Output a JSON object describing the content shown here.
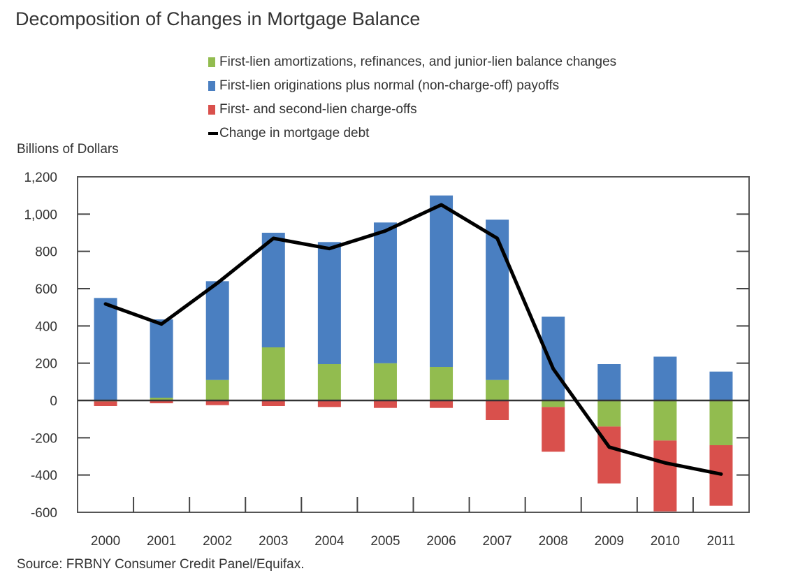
{
  "chart_data": {
    "type": "bar",
    "stacked": true,
    "title": "Decomposition of Changes in Mortgage Balance",
    "ylabel": "Billions of Dollars",
    "xlabel": "",
    "source": "Source: FRBNY Consumer Credit Panel/Equifax.",
    "ylim": [
      -600,
      1200
    ],
    "yticks": [
      1200,
      1000,
      800,
      600,
      400,
      200,
      0,
      -200,
      -400,
      -600
    ],
    "ytick_labels": [
      "1,200",
      "1,000",
      "800",
      "600",
      "400",
      "200",
      "0",
      "-200",
      "-400",
      "-600"
    ],
    "categories": [
      "2000",
      "2001",
      "2002",
      "2003",
      "2004",
      "2005",
      "2006",
      "2007",
      "2008",
      "2009",
      "2010",
      "2011"
    ],
    "legend_position": "top",
    "series": [
      {
        "name": "First-lien amortizations, refinances, and junior-lien balance changes",
        "kind": "bar",
        "color": "#92bc4f",
        "values": [
          -5,
          15,
          110,
          285,
          195,
          200,
          180,
          110,
          -35,
          -140,
          -215,
          -240
        ]
      },
      {
        "name": "First-lien originations plus normal (non-charge-off) payoffs",
        "kind": "bar",
        "color": "#4a7fc1",
        "values": [
          550,
          420,
          530,
          615,
          655,
          755,
          920,
          860,
          450,
          195,
          235,
          155
        ]
      },
      {
        "name": "First- and second-lien charge-offs",
        "kind": "bar",
        "color": "#d9504c",
        "values": [
          -25,
          -15,
          -25,
          -30,
          -35,
          -40,
          -40,
          -105,
          -240,
          -305,
          -380,
          -325
        ]
      },
      {
        "name": "Change in mortgage debt",
        "kind": "line",
        "color": "#000000",
        "values": [
          518,
          410,
          630,
          870,
          815,
          910,
          1050,
          870,
          170,
          -250,
          -335,
          -395
        ]
      }
    ]
  }
}
